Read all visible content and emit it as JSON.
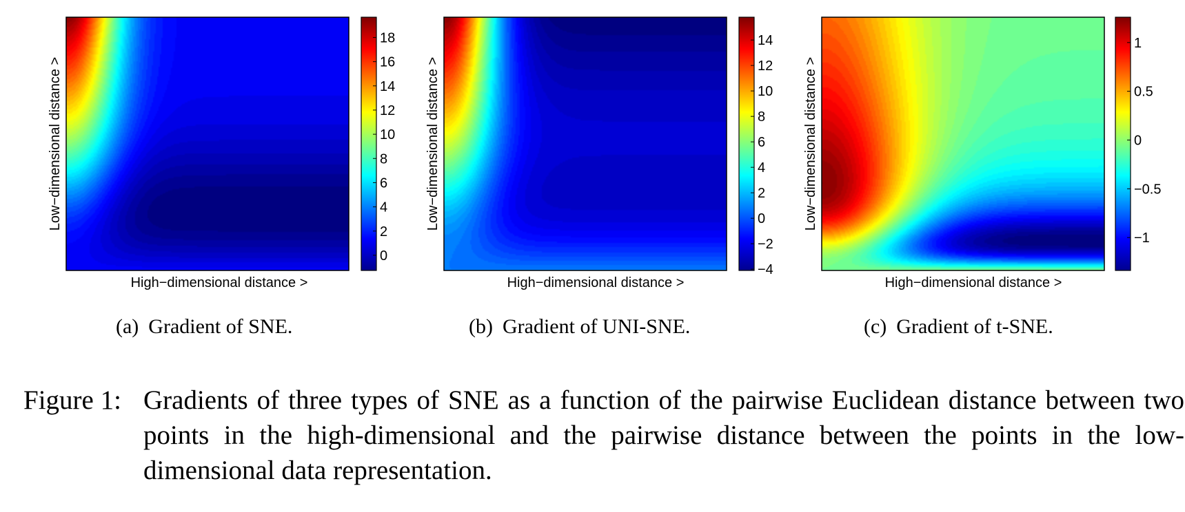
{
  "chart_data": [
    {
      "type": "heatmap",
      "xlabel": "High−dimensional distance >",
      "ylabel": "Low−dimensional distance >",
      "colorbar_ticks": [
        "0",
        "2",
        "4",
        "6",
        "8",
        "10",
        "12",
        "14",
        "16",
        "18"
      ],
      "colormap": "jet",
      "kind": "sne"
    },
    {
      "type": "heatmap",
      "xlabel": "High−dimensional distance >",
      "ylabel": "Low−dimensional distance >",
      "colorbar_ticks": [
        "−4",
        "−2",
        "0",
        "2",
        "4",
        "6",
        "8",
        "10",
        "12",
        "14"
      ],
      "colormap": "jet",
      "kind": "uni"
    },
    {
      "type": "heatmap",
      "xlabel": "High−dimensional distance >",
      "ylabel": "Low−dimensional distance >",
      "colorbar_ticks": [
        "−1",
        "−0.5",
        "0",
        "0.5",
        "1"
      ],
      "colormap": "jet",
      "kind": "tsne"
    }
  ],
  "captions": [
    {
      "tag": "(a)",
      "text": "Gradient of SNE."
    },
    {
      "tag": "(b)",
      "text": "Gradient of UNI-SNE."
    },
    {
      "tag": "(c)",
      "text": "Gradient of t-SNE."
    }
  ],
  "figure_caption": {
    "label": "Figure 1:",
    "text": "Gradients of three types of SNE as a function of the pairwise Euclidean distance between two points in the high-dimensional and the pairwise distance between the points in the low-dimensional data representation."
  }
}
